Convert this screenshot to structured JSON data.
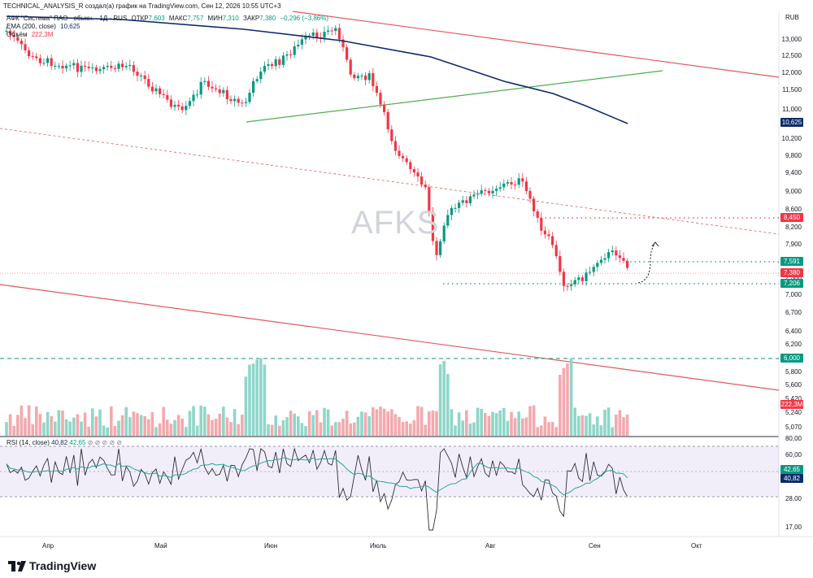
{
  "header": {
    "created_line": "TECHNICAL_ANALYSIS_R создал(а) график на TradingView.com, Сен 12, 2026 10:55 UTC+3",
    "symbol": "АФК \"Система\" ПАО · обыкн. · 1Д · RUS",
    "ohlc": {
      "open_label": "ОТКР",
      "open": "7,603",
      "high_label": "МАКС",
      "high": "7,757",
      "low_label": "МИН",
      "low": "7,310",
      "close_label": "ЗАКР",
      "close": "7,380",
      "change": "−0,296 (−3,86%)"
    },
    "ema_label": "EMA (200, close)",
    "ema_value": "10,625",
    "volume_label": "Объём",
    "volume_value": "222,3M",
    "watermark": "AFKS",
    "currency": "RUB"
  },
  "price_axis": [
    "13,000",
    "12,500",
    "12,000",
    "11,500",
    "11,000",
    "10,600",
    "10,200",
    "9,800",
    "9,400",
    "9,000",
    "8,600",
    "8,200",
    "7,900",
    "7,600",
    "7,300",
    "7,000",
    "6,700",
    "6,400",
    "6,200",
    "6,000",
    "5,800",
    "5,600",
    "5,420",
    "5,240",
    "5,070"
  ],
  "price_badges": [
    {
      "value": "10,625",
      "color": "#0d2a6b"
    },
    {
      "value": "8,450",
      "color": "#f23645"
    },
    {
      "value": "7,591",
      "color": "#089981"
    },
    {
      "value": "7,380",
      "color": "#f23645"
    },
    {
      "value": "7,206",
      "color": "#089981"
    },
    {
      "value": "6,000",
      "color": "#089981"
    },
    {
      "value": "222,3M",
      "color": "#f23645"
    }
  ],
  "rsi": {
    "label": "RSI (14, close)",
    "value1": "40,82",
    "value2": "42,65",
    "axis": [
      "80,00",
      "60,00",
      "28,00",
      "17,00"
    ],
    "badges": [
      {
        "value": "42,65",
        "color": "#089981"
      },
      {
        "value": "40,82",
        "color": "#0d2a6b"
      }
    ]
  },
  "time_axis": [
    "Апр",
    "Май",
    "Июн",
    "Июль",
    "Авг",
    "Сен",
    "Окт"
  ],
  "footer": {
    "brand": "TradingView"
  },
  "chart_data": {
    "type": "candlestick",
    "currency": "RUB",
    "price_range": [
      5.0,
      13.3
    ],
    "levels": {
      "resistance_dotted": 8.45,
      "support_upper": 7.591,
      "support_lower": 7.206,
      "volume_level": 6.0
    },
    "ema200_last": 10.625,
    "rsi_last": 40.82,
    "rsi_ma_last": 42.65
  }
}
